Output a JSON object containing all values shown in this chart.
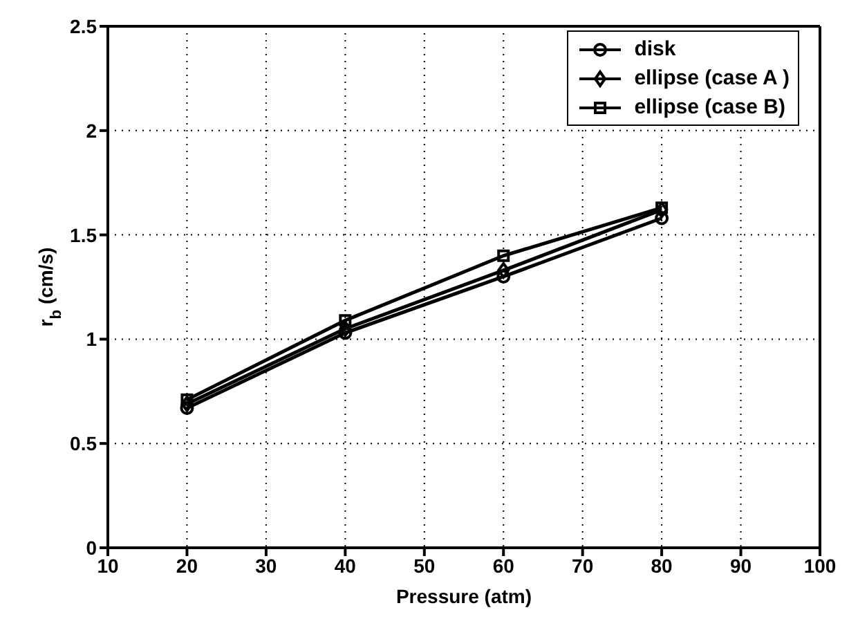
{
  "chart_data": {
    "type": "line",
    "xlabel": "Pressure (atm)",
    "ylabel": "r$_{b}$ (cm/s)",
    "x": [
      20,
      40,
      60,
      80
    ],
    "series": [
      {
        "name": "disk",
        "color": "#000000",
        "values": [
          0.67,
          1.03,
          1.3,
          1.58
        ],
        "marker": "circle"
      },
      {
        "name": "ellipse (case A )",
        "color": "#000000",
        "values": [
          0.69,
          1.05,
          1.33,
          1.62
        ],
        "marker": "diamond"
      },
      {
        "name": "ellipse (case B)",
        "color": "#000000",
        "values": [
          0.71,
          1.09,
          1.4,
          1.63
        ],
        "marker": "square"
      }
    ],
    "xlim": [
      10,
      100
    ],
    "xticks": [
      10,
      20,
      30,
      40,
      50,
      60,
      70,
      80,
      90,
      100
    ],
    "ylim": [
      0,
      2.5
    ],
    "yticks": [
      0,
      0.5,
      1,
      1.5,
      2,
      2.5
    ],
    "grid": true,
    "legend": "top right",
    "line_style": "solid"
  }
}
